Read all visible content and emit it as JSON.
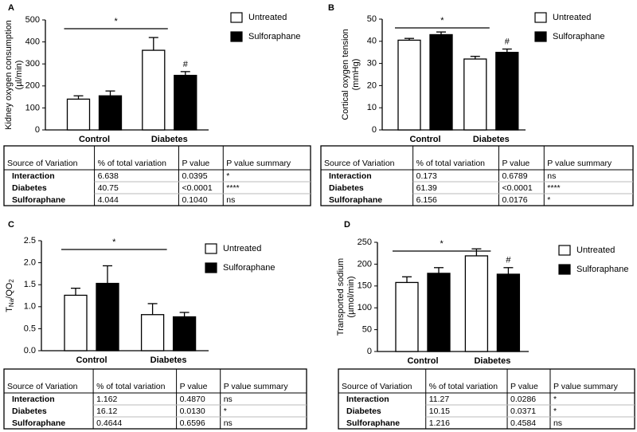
{
  "chart_data": [
    {
      "type": "bar",
      "label": "A",
      "ylabel": [
        "Kidney oxygen consumption",
        "(µl/min)"
      ],
      "categories": [
        "Control",
        "Diabetes"
      ],
      "series": [
        {
          "name": "Untreated",
          "color": "#ffffff",
          "values": [
            140,
            362
          ],
          "errors": [
            15,
            58
          ]
        },
        {
          "name": "Sulforaphane",
          "color": "#000000",
          "values": [
            155,
            248
          ],
          "errors": [
            22,
            17
          ]
        }
      ],
      "ylim": [
        0,
        500
      ],
      "yticks": [
        0,
        100,
        200,
        300,
        400,
        500
      ],
      "annotations": [
        {
          "text": "*"
        },
        {
          "text": "#"
        }
      ]
    },
    {
      "type": "bar",
      "label": "B",
      "ylabel": [
        "Cortical oxygen tension",
        "(mmHg)"
      ],
      "categories": [
        "Control",
        "Diabetes"
      ],
      "series": [
        {
          "name": "Untreated",
          "color": "#ffffff",
          "values": [
            40.5,
            32
          ],
          "errors": [
            0.8,
            1.2
          ]
        },
        {
          "name": "Sulforaphane",
          "color": "#000000",
          "values": [
            43,
            35
          ],
          "errors": [
            1.2,
            1.5
          ]
        }
      ],
      "ylim": [
        0,
        50
      ],
      "yticks": [
        0,
        10,
        20,
        30,
        40,
        50
      ],
      "annotations": [
        {
          "text": "*"
        },
        {
          "text": "#"
        }
      ]
    },
    {
      "type": "bar",
      "label": "C",
      "ylabel": [
        "T",
        "Na",
        "/QO",
        "2"
      ],
      "categories": [
        "Control",
        "Diabetes"
      ],
      "series": [
        {
          "name": "Untreated",
          "color": "#ffffff",
          "values": [
            1.26,
            0.82
          ],
          "errors": [
            0.16,
            0.25
          ]
        },
        {
          "name": "Sulforaphane",
          "color": "#000000",
          "values": [
            1.53,
            0.77
          ],
          "errors": [
            0.4,
            0.1
          ]
        }
      ],
      "ylim": [
        0,
        2.5
      ],
      "yticks": [
        {
          "value": 0,
          "label": "0.0"
        },
        0.5,
        {
          "value": 1,
          "label": "1.0"
        },
        1.5,
        {
          "value": 2,
          "label": "2.0"
        },
        2.5
      ],
      "annotations": [
        {
          "text": "*"
        }
      ]
    },
    {
      "type": "bar",
      "label": "D",
      "ylabel": [
        "Transported sodium",
        "(µmol/min)"
      ],
      "categories": [
        "Control",
        "Diabetes"
      ],
      "series": [
        {
          "name": "Untreated",
          "color": "#ffffff",
          "values": [
            158,
            219
          ],
          "errors": [
            13,
            16
          ]
        },
        {
          "name": "Sulforaphane",
          "color": "#000000",
          "values": [
            179,
            177
          ],
          "errors": [
            13,
            15
          ]
        }
      ],
      "ylim": [
        0,
        250
      ],
      "yticks": [
        0,
        50,
        100,
        150,
        200,
        250
      ],
      "annotations": [
        {
          "text": "*"
        },
        {
          "text": "#"
        }
      ]
    }
  ],
  "tables": [
    {
      "header": [
        "Source of Variation",
        "% of total variation",
        "P value",
        "P value summary"
      ],
      "rows": [
        [
          "Interaction",
          "6.638",
          "0.0395",
          "*"
        ],
        [
          "Diabetes",
          "40.75",
          "<0.0001",
          "****"
        ],
        [
          "Sulforaphane",
          "4.044",
          "0.1040",
          "ns"
        ]
      ]
    },
    {
      "header": [
        "Source of Variation",
        "% of total variation",
        "P value",
        "P value summary"
      ],
      "rows": [
        [
          "Interaction",
          "0.173",
          "0.6789",
          "ns"
        ],
        [
          "Diabetes",
          "61.39",
          "<0.0001",
          "****"
        ],
        [
          "Sulforaphane",
          "6.156",
          "0.0176",
          "*"
        ]
      ]
    },
    {
      "header": [
        "Source of Variation",
        "% of total variation",
        "P value",
        "P value summary"
      ],
      "rows": [
        [
          "Interaction",
          "1.162",
          "0.4870",
          "ns"
        ],
        [
          "Diabetes",
          "16.12",
          "0.0130",
          "*"
        ],
        [
          "Sulforaphane",
          "0.4644",
          "0.6596",
          "ns"
        ]
      ]
    },
    {
      "header": [
        "Source of Variation",
        "% of total variation",
        "P value",
        "P value summary"
      ],
      "rows": [
        [
          "Interaction",
          "11.27",
          "0.0286",
          "*"
        ],
        [
          "Diabetes",
          "10.15",
          "0.0371",
          "*"
        ],
        [
          "Sulforaphane",
          "1.216",
          "0.4584",
          "ns"
        ]
      ]
    }
  ]
}
